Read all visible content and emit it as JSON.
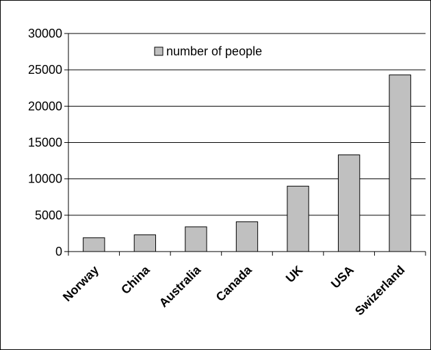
{
  "chart_data": {
    "type": "bar",
    "categories": [
      "Norway",
      "China",
      "Australia",
      "Canada",
      "UK",
      "USA",
      "Swizerland"
    ],
    "series": [
      {
        "name": "number of people",
        "values": [
          1900,
          2300,
          3400,
          4100,
          9000,
          13300,
          24300
        ]
      }
    ],
    "ylim": [
      0,
      30000
    ],
    "yticks": [
      "0",
      "5000",
      "10000",
      "15000",
      "20000",
      "25000",
      "30000"
    ],
    "grid": true,
    "legend_position": "top-center",
    "colors": {
      "bar_fill": "#c0c0c0",
      "bar_stroke": "#000000",
      "gridline": "#000000",
      "frame": "#000000"
    }
  }
}
